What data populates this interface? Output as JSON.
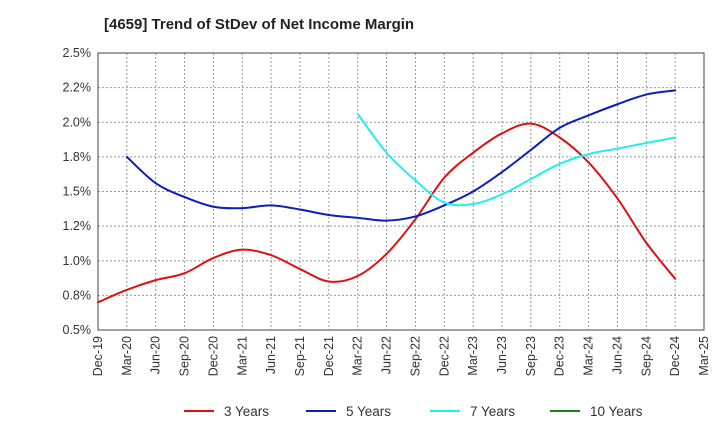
{
  "chart_data": {
    "type": "line",
    "title": "[4659]  Trend of StDev of Net Income Margin",
    "xlabel": "",
    "ylabel": "",
    "categories": [
      "Dec-19",
      "Mar-20",
      "Jun-20",
      "Sep-20",
      "Dec-20",
      "Mar-21",
      "Jun-21",
      "Sep-21",
      "Dec-21",
      "Mar-22",
      "Jun-22",
      "Sep-22",
      "Dec-22",
      "Mar-23",
      "Jun-23",
      "Sep-23",
      "Dec-23",
      "Mar-24",
      "Jun-24",
      "Sep-24",
      "Dec-24",
      "Mar-25"
    ],
    "y_tick_labels": [
      "0.5%",
      "0.8%",
      "1.0%",
      "1.2%",
      "1.5%",
      "1.8%",
      "2.0%",
      "2.2%",
      "2.5%"
    ],
    "ylim": [
      0.5,
      2.5
    ],
    "grid": true,
    "legend_position": "bottom",
    "series": [
      {
        "name": "3 Years",
        "color": "#dd1111",
        "values": [
          0.7,
          0.79,
          0.86,
          0.91,
          1.02,
          1.08,
          1.04,
          0.94,
          0.85,
          0.89,
          1.05,
          1.3,
          1.6,
          1.78,
          1.92,
          1.99,
          1.89,
          1.71,
          1.45,
          1.13,
          0.87,
          null
        ]
      },
      {
        "name": "5 Years",
        "color": "#0a1fbf",
        "values": [
          null,
          1.75,
          1.56,
          1.46,
          1.39,
          1.38,
          1.4,
          1.37,
          1.33,
          1.31,
          1.29,
          1.32,
          1.4,
          1.5,
          1.64,
          1.8,
          1.96,
          2.05,
          2.13,
          2.2,
          2.23,
          null
        ]
      },
      {
        "name": "7 Years",
        "color": "#22eeee",
        "values": [
          null,
          null,
          null,
          null,
          null,
          null,
          null,
          null,
          null,
          2.06,
          1.78,
          1.58,
          1.42,
          1.41,
          1.48,
          1.59,
          1.7,
          1.77,
          1.81,
          1.85,
          1.89,
          null
        ]
      },
      {
        "name": "10 Years",
        "color": "#118811",
        "values": [
          null,
          null,
          null,
          null,
          null,
          null,
          null,
          null,
          null,
          null,
          null,
          null,
          null,
          null,
          null,
          null,
          null,
          null,
          null,
          null,
          null,
          null
        ]
      }
    ]
  }
}
